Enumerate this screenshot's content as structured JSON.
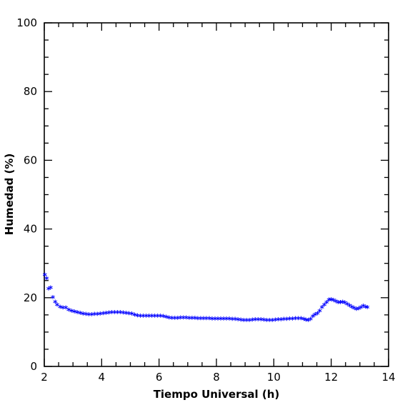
{
  "chart_data": {
    "type": "scatter",
    "xlabel": "Tiempo Universal (h)",
    "ylabel": "Humedad (%)",
    "xlim": [
      2,
      14
    ],
    "ylim": [
      0,
      100
    ],
    "x_ticks": [
      2,
      4,
      6,
      8,
      10,
      12,
      14
    ],
    "y_ticks": [
      0,
      20,
      40,
      60,
      80,
      100
    ],
    "x_minor_step": 0.5,
    "y_minor_step": 5,
    "grid": false,
    "marker": "*",
    "series": [
      {
        "color": "#0000ff",
        "x": [
          2.02,
          2.08,
          2.15,
          2.22,
          2.3,
          2.38,
          2.45,
          2.55,
          2.65,
          2.75,
          2.85,
          2.95,
          3.05,
          3.15,
          3.25,
          3.35,
          3.45,
          3.55,
          3.65,
          3.75,
          3.85,
          3.95,
          4.05,
          4.15,
          4.25,
          4.35,
          4.45,
          4.55,
          4.65,
          4.75,
          4.85,
          4.95,
          5.05,
          5.15,
          5.25,
          5.35,
          5.45,
          5.55,
          5.65,
          5.75,
          5.85,
          5.95,
          6.05,
          6.15,
          6.25,
          6.35,
          6.45,
          6.55,
          6.65,
          6.75,
          6.85,
          6.95,
          7.05,
          7.15,
          7.25,
          7.35,
          7.45,
          7.55,
          7.65,
          7.75,
          7.85,
          7.95,
          8.05,
          8.15,
          8.25,
          8.35,
          8.45,
          8.55,
          8.65,
          8.75,
          8.85,
          8.95,
          9.05,
          9.15,
          9.25,
          9.35,
          9.45,
          9.55,
          9.65,
          9.75,
          9.85,
          9.95,
          10.05,
          10.15,
          10.25,
          10.35,
          10.45,
          10.55,
          10.65,
          10.75,
          10.85,
          10.95,
          11.05,
          11.12,
          11.2,
          11.28,
          11.36,
          11.44,
          11.52,
          11.6,
          11.68,
          11.76,
          11.84,
          11.92,
          12.0,
          12.08,
          12.16,
          12.24,
          12.32,
          12.4,
          12.48,
          12.56,
          12.64,
          12.72,
          12.8,
          12.88,
          12.96,
          13.04,
          13.12,
          13.2,
          13.26
        ],
        "y": [
          26.5,
          25.5,
          22.5,
          22.8,
          20.0,
          18.6,
          17.8,
          17.2,
          16.9,
          16.9,
          16.3,
          16.0,
          15.8,
          15.6,
          15.4,
          15.2,
          15.1,
          15.0,
          15.0,
          15.1,
          15.1,
          15.2,
          15.3,
          15.4,
          15.5,
          15.6,
          15.6,
          15.6,
          15.6,
          15.5,
          15.4,
          15.3,
          15.2,
          14.9,
          14.7,
          14.6,
          14.6,
          14.6,
          14.6,
          14.6,
          14.6,
          14.6,
          14.6,
          14.5,
          14.2,
          14.0,
          13.9,
          13.9,
          13.9,
          14.0,
          14.0,
          14.0,
          13.9,
          13.9,
          13.9,
          13.8,
          13.8,
          13.8,
          13.8,
          13.8,
          13.7,
          13.7,
          13.7,
          13.7,
          13.7,
          13.7,
          13.7,
          13.6,
          13.6,
          13.5,
          13.4,
          13.3,
          13.3,
          13.3,
          13.4,
          13.5,
          13.5,
          13.5,
          13.4,
          13.3,
          13.3,
          13.3,
          13.4,
          13.5,
          13.5,
          13.6,
          13.6,
          13.7,
          13.7,
          13.8,
          13.8,
          13.8,
          13.6,
          13.4,
          13.3,
          13.6,
          14.5,
          15.0,
          15.3,
          16.0,
          17.0,
          17.8,
          18.5,
          19.2,
          19.3,
          19.1,
          18.8,
          18.5,
          18.5,
          18.6,
          18.4,
          18.0,
          17.6,
          17.2,
          16.8,
          16.5,
          16.7,
          17.0,
          17.5,
          17.2,
          17.0
        ]
      }
    ]
  }
}
